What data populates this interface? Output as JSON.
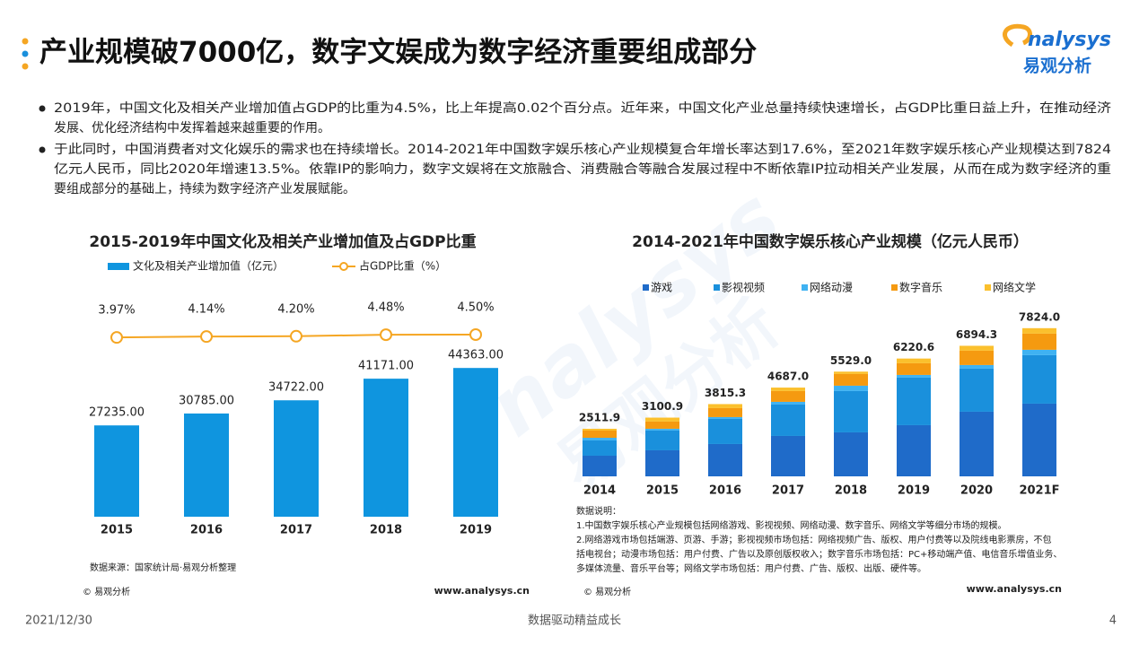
{
  "header": {
    "title": "产业规模破7000亿，数字文娱成为数字经济重要组成部分"
  },
  "logo": {
    "mark": "nalysys",
    "name": "易观分析"
  },
  "bullets": [
    [
      "2019年，中国文化及相关产业增加值占GDP的比重为4.5%，比上年提高0.02个百分点。近年来，中国文化产业总量持续快速增长，占GDP比重日益上升，在推动经济",
      "发展、优化经济结构中发挥着越来越重要的作用。"
    ],
    [
      "于此同时，中国消费者对文化娱乐的需求也在持续增长。2014-2021年中国数字娱乐核心产业规模复合年增长率达到17.6%，至2021年数字娱乐核心产业规模达到7824",
      "亿元人民币，同比2020年增速13.5%。依靠IP的影响力，数字文娱将在文旅融合、消费融合等融合发展过程中不断依靠IP拉动相关产业发展，从而在成为数字经济的重",
      "要组成部分的基础上，持续为数字经济产业发展赋能。"
    ]
  ],
  "chart_data": [
    {
      "type": "bar",
      "title": "2015-2019年中国文化及相关产业增加值及占GDP比重",
      "categories": [
        "2015",
        "2016",
        "2017",
        "2018",
        "2019"
      ],
      "series": [
        {
          "name": "文化及相关产业增加值（亿元）",
          "color": "#0f95df",
          "values": [
            27235,
            30785,
            34722,
            41171,
            44363
          ],
          "value_labels": [
            "27235.00",
            "30785.00",
            "34722.00",
            "41171.00",
            "44363.00"
          ]
        },
        {
          "name": "占GDP比重（%）",
          "type": "line",
          "axis": "y2",
          "color": "#f5a623",
          "values": [
            3.97,
            4.14,
            4.2,
            4.48,
            4.5
          ],
          "value_labels": [
            "3.97%",
            "4.14%",
            "4.20%",
            "4.48%",
            "4.50%"
          ]
        }
      ],
      "ylim": [
        0,
        80000
      ],
      "y2lim": [
        0,
        5
      ],
      "source": "数据来源：国家统计局·易观分析整理",
      "copyright": "© 易观分析",
      "website": "www.analysys.cn"
    },
    {
      "type": "stacked_bar",
      "title": "2014-2021年中国数字娱乐核心产业规模（亿元人民币）",
      "categories": [
        "2014",
        "2015",
        "2016",
        "2017",
        "2018",
        "2019",
        "2020",
        "2021F"
      ],
      "series": [
        {
          "name": "游戏",
          "color": "#1f6bc9",
          "values": [
            1090,
            1375,
            1707,
            2133,
            2323,
            2702,
            3413,
            3839
          ]
        },
        {
          "name": "影视视频",
          "color": "#1a90dc",
          "values": [
            806,
            1043,
            1327,
            1659,
            2180,
            2512,
            2275,
            2560
          ]
        },
        {
          "name": "网络动漫",
          "color": "#3fb2f2",
          "values": [
            140,
            95,
            95,
            142,
            284,
            142,
            190,
            284
          ]
        },
        {
          "name": "数字音乐",
          "color": "#f59a10",
          "values": [
            380,
            380,
            474,
            569,
            616,
            616,
            758,
            853
          ]
        },
        {
          "name": "网络文学",
          "color": "#fbc02d",
          "values": [
            96,
            208,
            212,
            184,
            126,
            249,
            258,
            288
          ]
        }
      ],
      "totals": [
        2511.9,
        3100.9,
        3815.3,
        4687,
        5529,
        6220.6,
        6894.3,
        7824
      ],
      "total_labels": [
        "2511.9",
        "3100.9",
        "3815.3",
        "4687.0",
        "5529.0",
        "6220.6",
        "6894.3",
        "7824.0"
      ],
      "ylim": [
        0,
        9000
      ],
      "notes": [
        "数据说明：",
        "1.中国数字娱乐核心产业规模包括网络游戏、影视视频、网络动漫、数字音乐、网络文学等细分市场的规模。",
        "2.网络游戏市场包括端游、页游、手游；影视视频市场包括：网络视频广告、版权、用户付费等以及院线电影票房，不包",
        "括电视台；动漫市场包括：用户付费、广告以及原创版权收入；数字音乐市场包括：PC+移动端产值、电信音乐增值业务、",
        "多媒体流量、音乐平台等；网络文学市场包括：用户付费、广告、版权、出版、硬件等。"
      ],
      "copyright": "© 易观分析",
      "website": "www.analysys.cn"
    }
  ],
  "footer": {
    "date": "2021/12/30",
    "slogan": "数据驱动精益成长",
    "page": "4"
  }
}
